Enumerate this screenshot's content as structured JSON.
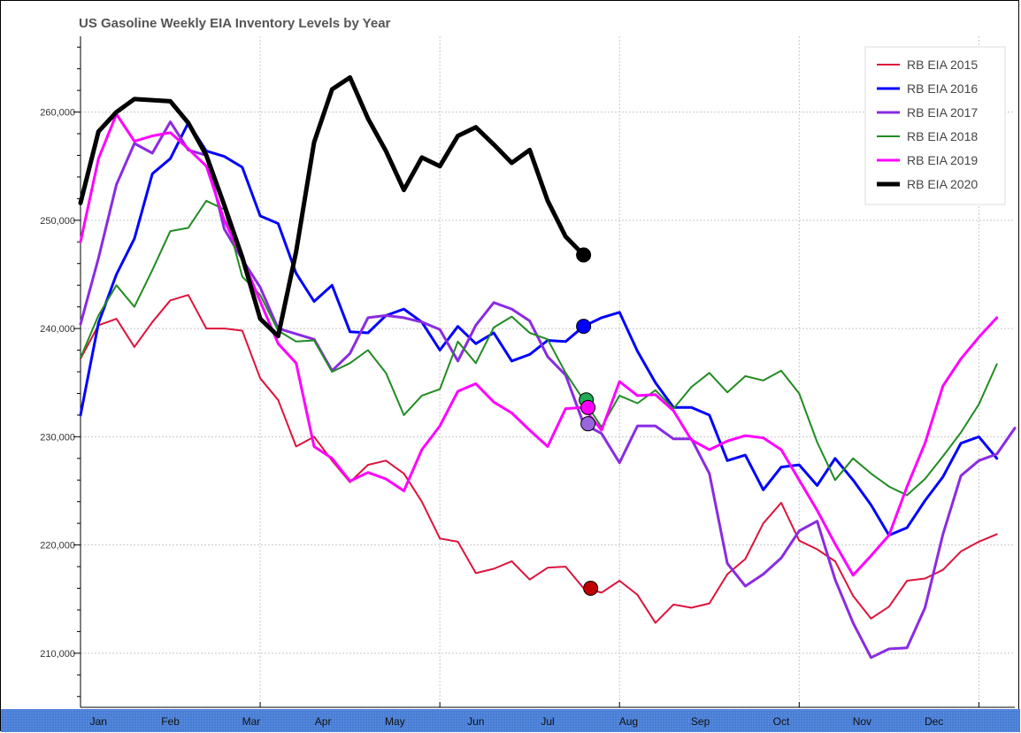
{
  "chart_data": {
    "type": "line",
    "title": "US Gasoline Weekly EIA Inventory Levels by Year",
    "xlabel": "",
    "ylabel": "",
    "xlim": [
      0,
      52
    ],
    "ylim": [
      205000,
      267000
    ],
    "yticks": [
      {
        "value": 210000,
        "label": "210,000"
      },
      {
        "value": 220000,
        "label": "220,000"
      },
      {
        "value": 230000,
        "label": "230,000"
      },
      {
        "value": 240000,
        "label": "240,000"
      },
      {
        "value": 250000,
        "label": "250,000"
      },
      {
        "value": 260000,
        "label": "260,000"
      }
    ],
    "xticks": [
      {
        "label": "Jan",
        "week": 1
      },
      {
        "label": "Feb",
        "week": 5
      },
      {
        "label": "Mar",
        "week": 9.5
      },
      {
        "label": "Apr",
        "week": 13.5
      },
      {
        "label": "May",
        "week": 17.5
      },
      {
        "label": "Jun",
        "week": 22
      },
      {
        "label": "Jul",
        "week": 26
      },
      {
        "label": "Aug",
        "week": 30.5
      },
      {
        "label": "Sep",
        "week": 34.5
      },
      {
        "label": "Oct",
        "week": 39
      },
      {
        "label": "Nov",
        "week": 43.5
      },
      {
        "label": "Dec",
        "week": 47.5
      }
    ],
    "xgrid_weeks": [
      10,
      20,
      30,
      40,
      50
    ],
    "grid": true,
    "legend_position": "top-right",
    "series": [
      {
        "name": "RB EIA 2015",
        "color": "#dc143c",
        "width": 2,
        "values": [
          237200,
          240300,
          240900,
          238300,
          240600,
          242600,
          243100,
          240000,
          240000,
          239800,
          235400,
          233400,
          229100,
          230000,
          227800,
          225800,
          227400,
          227800,
          226600,
          224000,
          220600,
          220300,
          217400,
          217800,
          218500,
          216800,
          217900,
          218000,
          216000,
          215600,
          216700,
          215400,
          212800,
          214500,
          214200,
          214600,
          217300,
          218700,
          222000,
          223900,
          220400,
          219600,
          218500,
          215300,
          213200,
          214300,
          216700,
          216900,
          217700,
          219400,
          220300,
          221000
        ],
        "marker_index": 28
      },
      {
        "name": "RB EIA 2016",
        "color": "#0000ff",
        "width": 3,
        "values": [
          232000,
          240500,
          245000,
          248300,
          254300,
          255700,
          259000,
          256400,
          255900,
          254900,
          250400,
          249700,
          245100,
          242500,
          244000,
          239700,
          239600,
          241200,
          241800,
          240600,
          238000,
          240200,
          238600,
          239600,
          237000,
          237600,
          238900,
          238800,
          240200,
          241000,
          241500,
          237900,
          235000,
          232700,
          232700,
          232000,
          227800,
          228300,
          225100,
          227200,
          227400,
          225500,
          228000,
          226000,
          223700,
          220900,
          221600,
          224100,
          226300,
          229400,
          230000,
          228000
        ],
        "marker_index": 28
      },
      {
        "name": "RB EIA 2017",
        "color": "#8a2be2",
        "width": 3,
        "values": [
          240400,
          246500,
          253300,
          257100,
          256200,
          259100,
          256500,
          256000,
          249200,
          246400,
          243800,
          240000,
          239500,
          239000,
          236100,
          237700,
          241000,
          241200,
          241000,
          240600,
          239900,
          237000,
          240300,
          242400,
          241800,
          240700,
          237400,
          235700,
          231200,
          230300,
          227600,
          231000,
          231000,
          229800,
          229800,
          226600,
          218300,
          216200,
          217300,
          218800,
          221300,
          222200,
          216800,
          212800,
          209600,
          210400,
          210500,
          214200,
          221000,
          226400,
          227800,
          228400,
          230800
        ],
        "marker_index": 28
      },
      {
        "name": "RB EIA 2018",
        "color": "#228b22",
        "width": 2,
        "values": [
          237300,
          241200,
          244000,
          242000,
          245400,
          249000,
          249300,
          251800,
          251000,
          244800,
          243100,
          239800,
          238800,
          238900,
          236000,
          236800,
          238000,
          235900,
          232000,
          233800,
          234400,
          238800,
          236800,
          240100,
          241100,
          239600,
          239000,
          235900,
          233400,
          230900,
          233800,
          233100,
          234300,
          232600,
          234600,
          235900,
          234100,
          235600,
          235200,
          236100,
          234000,
          229500,
          226000,
          228000,
          226600,
          225400,
          224600,
          226100,
          228200,
          230400,
          233000,
          236700
        ],
        "marker_index": 28
      },
      {
        "name": "RB EIA 2019",
        "color": "#ff00ff",
        "width": 3,
        "values": [
          248000,
          255700,
          259800,
          257300,
          257800,
          258100,
          256600,
          255000,
          250000,
          246500,
          242500,
          238600,
          236800,
          229100,
          228000,
          225900,
          226700,
          226100,
          225000,
          228800,
          231000,
          234200,
          234900,
          233200,
          232200,
          230600,
          229100,
          232600,
          232700,
          230600,
          235100,
          233800,
          233900,
          232400,
          229700,
          228800,
          229600,
          230100,
          229900,
          228800,
          226000,
          223200,
          220100,
          217200,
          219000,
          220900,
          225400,
          229400,
          234700,
          237200,
          239200,
          241000
        ],
        "marker_index": 28
      },
      {
        "name": "RB EIA 2020",
        "color": "#000000",
        "width": 5,
        "values": [
          251600,
          258200,
          260000,
          261200,
          261100,
          261000,
          259000,
          256000,
          251400,
          246600,
          240900,
          239300,
          247100,
          257200,
          262100,
          263200,
          259400,
          256400,
          252800,
          255800,
          255000,
          257800,
          258600,
          257000,
          255300,
          256500,
          251800,
          248500,
          246800
        ],
        "marker_index": 28
      }
    ]
  }
}
